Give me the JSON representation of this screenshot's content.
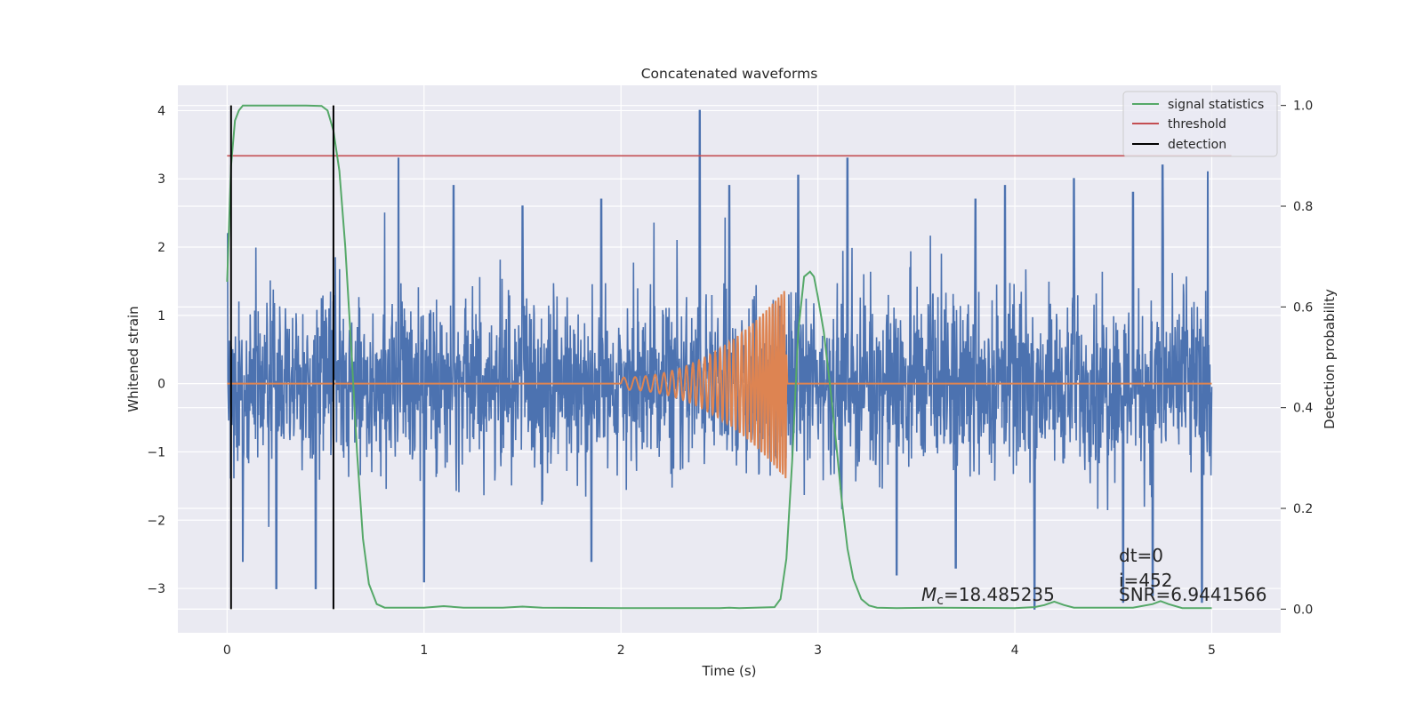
{
  "chart_data": {
    "type": "line",
    "title": "Concatenated waveforms",
    "xlabel": "Time (s)",
    "ylabel": "Whitened strain",
    "y2label": "Detection probability",
    "xlim": [
      -0.25,
      5.35
    ],
    "ylim": [
      -3.65,
      4.37
    ],
    "y2lim": [
      -0.047,
      1.04
    ],
    "xticks": [
      0,
      1,
      2,
      3,
      4,
      5
    ],
    "yticks": [
      -3,
      -2,
      -1,
      0,
      1,
      2,
      3,
      4
    ],
    "y2ticks": [
      0.0,
      0.2,
      0.4,
      0.6,
      0.8,
      1.0
    ],
    "grid": true,
    "legend_position": "top-right",
    "legend": [
      "signal statistics",
      "threshold",
      "detection"
    ],
    "colors": {
      "strain": "#4c72b0",
      "template": "#dd8452",
      "signal_statistics": "#55a868",
      "threshold": "#c44e52",
      "detection": "#000000",
      "background": "#eaeaf2",
      "grid": "#ffffff"
    },
    "strain": {
      "x_range": [
        0,
        5
      ],
      "envelope": 1.35,
      "spikes": [
        [
          0.0,
          2.2
        ],
        [
          0.87,
          3.3
        ],
        [
          1.15,
          2.9
        ],
        [
          1.5,
          2.6
        ],
        [
          1.9,
          2.7
        ],
        [
          2.4,
          4.0
        ],
        [
          2.55,
          2.9
        ],
        [
          2.9,
          3.05
        ],
        [
          3.15,
          3.3
        ],
        [
          3.8,
          2.7
        ],
        [
          3.95,
          2.9
        ],
        [
          4.3,
          3.0
        ],
        [
          4.6,
          2.8
        ],
        [
          4.75,
          3.2
        ],
        [
          4.98,
          3.1
        ],
        [
          0.25,
          -3.0
        ],
        [
          0.45,
          -3.0
        ],
        [
          1.0,
          -2.9
        ],
        [
          1.85,
          -2.6
        ],
        [
          3.4,
          -2.8
        ],
        [
          4.1,
          -3.3
        ],
        [
          4.55,
          -3.2
        ],
        [
          4.7,
          -3.1
        ],
        [
          4.95,
          -3.2
        ],
        [
          0.08,
          -2.6
        ],
        [
          3.7,
          -2.7
        ]
      ]
    },
    "template": {
      "start": 2.0,
      "end": 2.84,
      "f_start": 17,
      "f_end": 72,
      "amp_start": 0.09,
      "amp_end": 1.4
    },
    "signal_statistics": {
      "x": [
        0.0,
        0.02,
        0.04,
        0.06,
        0.08,
        0.12,
        0.2,
        0.4,
        0.48,
        0.51,
        0.54,
        0.57,
        0.6,
        0.63,
        0.66,
        0.69,
        0.72,
        0.76,
        0.8,
        1.0,
        1.1,
        1.2,
        1.4,
        1.5,
        1.6,
        2.0,
        2.5,
        2.55,
        2.6,
        2.78,
        2.81,
        2.84,
        2.87,
        2.9,
        2.93,
        2.96,
        2.98,
        3.0,
        3.03,
        3.06,
        3.09,
        3.12,
        3.15,
        3.18,
        3.22,
        3.26,
        3.3,
        3.4,
        3.6,
        4.0,
        4.1,
        4.15,
        4.2,
        4.25,
        4.3,
        4.6,
        4.7,
        4.74,
        4.78,
        4.85,
        5.0
      ],
      "y": [
        0.65,
        0.88,
        0.97,
        0.99,
        1.0,
        1.0,
        1.0,
        1.0,
        0.999,
        0.99,
        0.95,
        0.87,
        0.72,
        0.52,
        0.31,
        0.14,
        0.05,
        0.01,
        0.003,
        0.003,
        0.006,
        0.003,
        0.003,
        0.005,
        0.003,
        0.002,
        0.002,
        0.003,
        0.002,
        0.004,
        0.02,
        0.1,
        0.3,
        0.55,
        0.66,
        0.67,
        0.66,
        0.62,
        0.55,
        0.45,
        0.34,
        0.22,
        0.12,
        0.06,
        0.02,
        0.007,
        0.003,
        0.002,
        0.003,
        0.002,
        0.004,
        0.008,
        0.015,
        0.008,
        0.003,
        0.003,
        0.01,
        0.016,
        0.01,
        0.002,
        0.002
      ]
    },
    "threshold": {
      "value": 0.9,
      "x_range": [
        0,
        5.1
      ]
    },
    "detections": [
      0.02,
      0.54
    ],
    "detection_y_range": [
      0,
      1
    ],
    "annotations": {
      "mc_symbol": "M",
      "mc_subscript": "c",
      "mc_value": "=18.485235",
      "dt": "dt=0",
      "i": "i=452",
      "snr": "SNR=6.9441566"
    }
  }
}
